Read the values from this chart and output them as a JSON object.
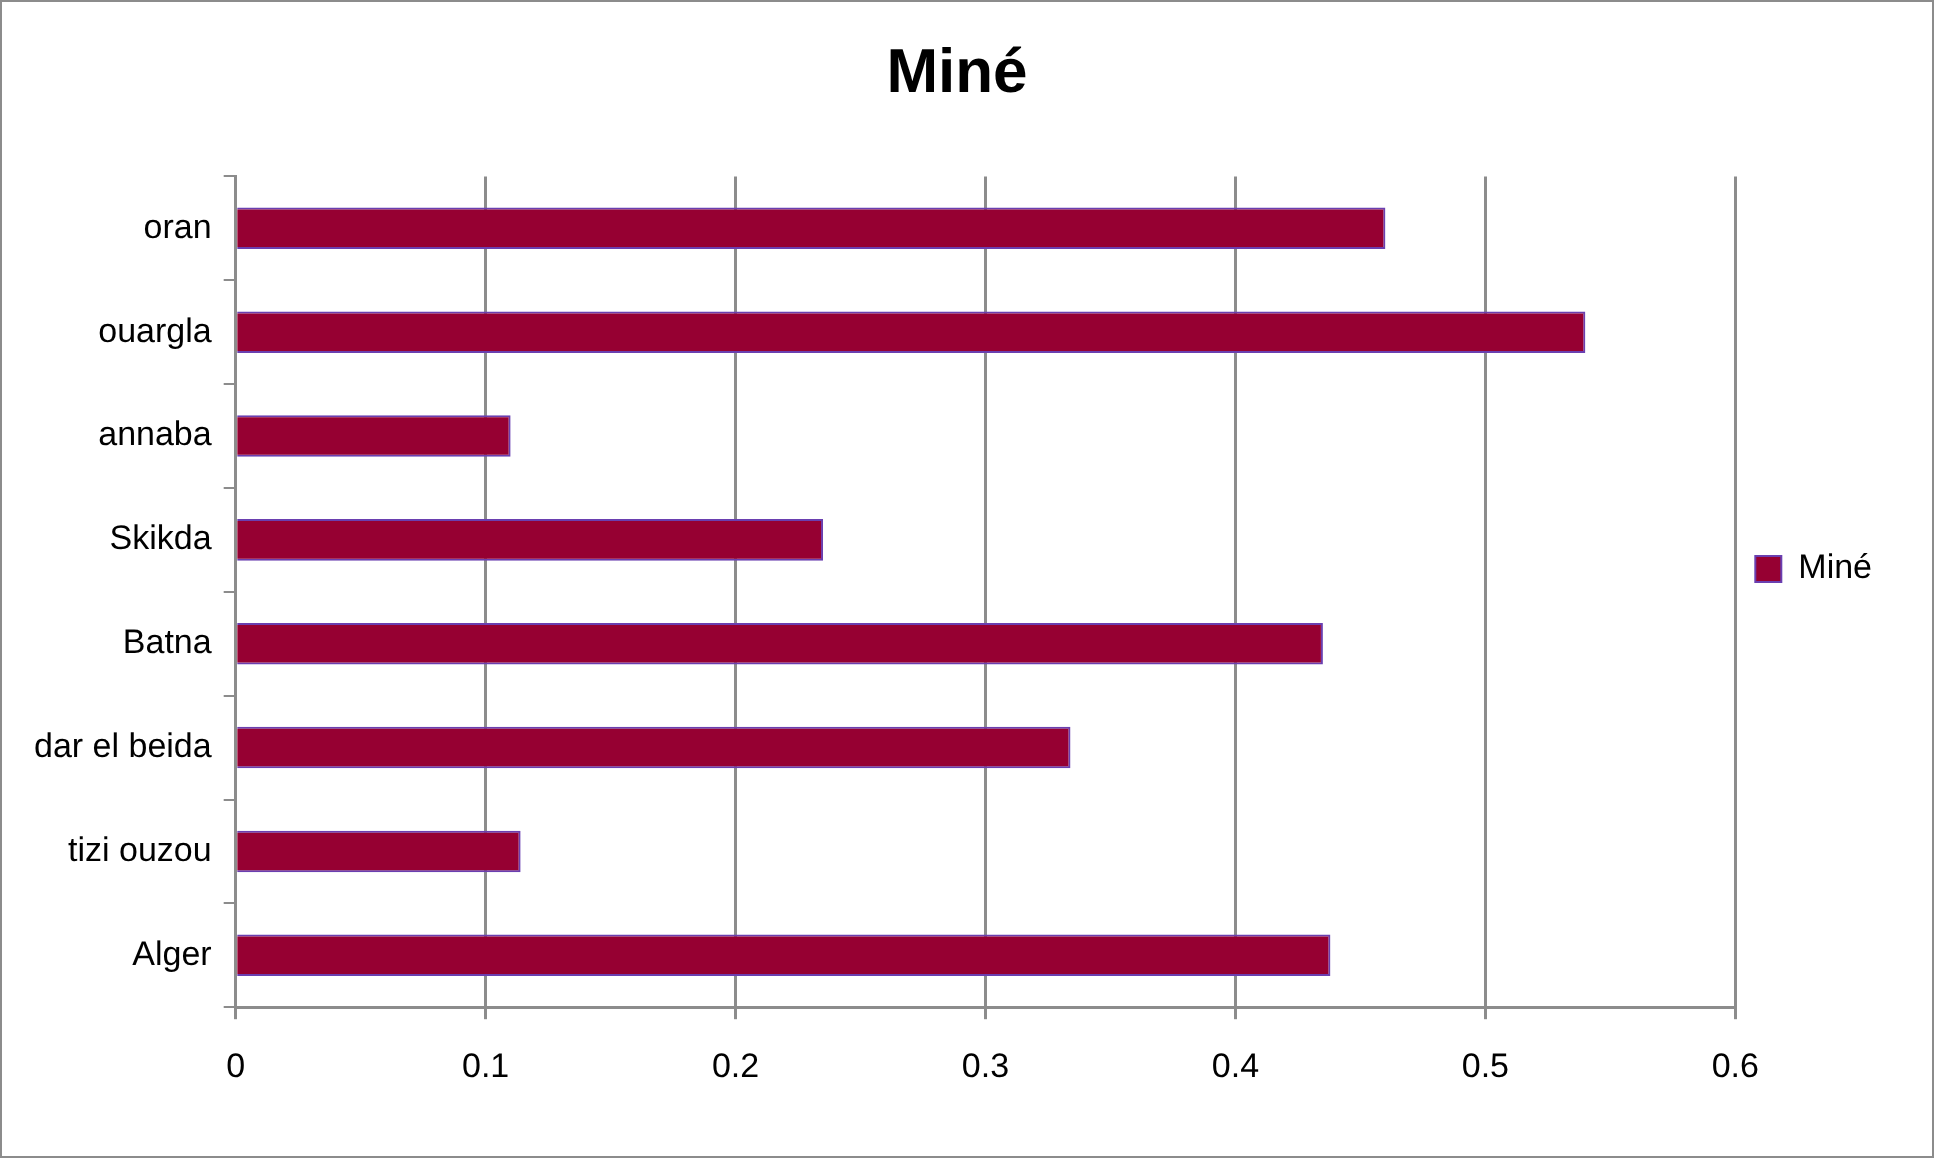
{
  "chart_data": {
    "type": "bar",
    "orientation": "horizontal",
    "title": "Miné",
    "categories": [
      "oran",
      "ouargla",
      "annaba",
      "Skikda",
      "Batna",
      "dar el beida",
      "tizi ouzou",
      "Alger"
    ],
    "series": [
      {
        "name": "Miné",
        "color": "#960032",
        "values": [
          0.46,
          0.54,
          0.11,
          0.235,
          0.435,
          0.334,
          0.114,
          0.438
        ]
      }
    ],
    "xlim": [
      0,
      0.6
    ],
    "xticks": [
      0,
      0.1,
      0.2,
      0.3,
      0.4,
      0.5,
      0.6
    ],
    "grid": "x",
    "legend": "right"
  }
}
